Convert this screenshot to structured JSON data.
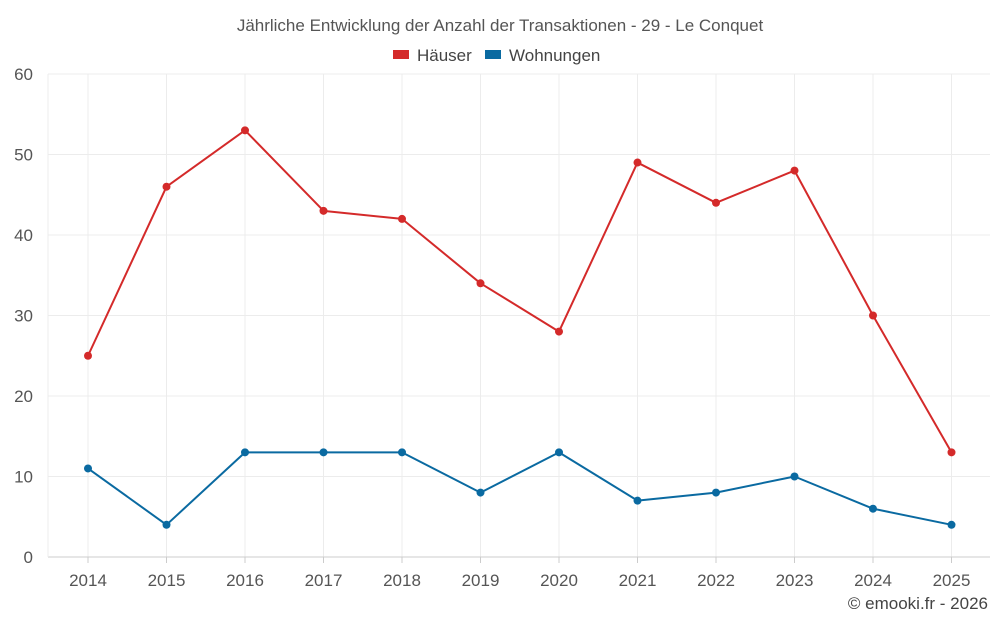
{
  "chart_data": {
    "type": "line",
    "title": "Jährliche Entwicklung der Anzahl der Transaktionen - 29 - Le Conquet",
    "categories": [
      "2014",
      "2015",
      "2016",
      "2017",
      "2018",
      "2019",
      "2020",
      "2021",
      "2022",
      "2023",
      "2024",
      "2025"
    ],
    "series": [
      {
        "name": "Häuser",
        "color": "#d42a2a",
        "values": [
          25,
          46,
          53,
          43,
          42,
          34,
          28,
          49,
          44,
          48,
          30,
          13
        ]
      },
      {
        "name": "Wohnungen",
        "color": "#0a6aa1",
        "values": [
          11,
          4,
          13,
          13,
          13,
          8,
          13,
          7,
          8,
          10,
          6,
          4
        ]
      }
    ],
    "ylim": [
      0,
      60
    ],
    "yticks": [
      "0",
      "10",
      "20",
      "30",
      "40",
      "50",
      "60"
    ],
    "xlabel": "",
    "ylabel": "",
    "grid": true,
    "legend_position": "top-center"
  },
  "credit": "© emooki.fr - 2026"
}
